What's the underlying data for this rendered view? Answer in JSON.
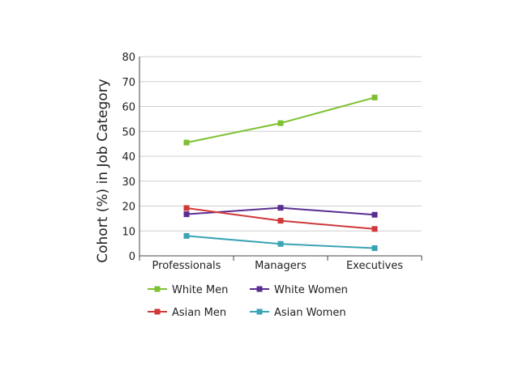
{
  "chart_data": {
    "type": "line",
    "title": "",
    "xlabel": "",
    "ylabel": "Cohort (%) in Job Category",
    "categories": [
      "Professionals",
      "Managers",
      "Executives"
    ],
    "ylim": [
      0,
      80
    ],
    "yticks": [
      0,
      10,
      20,
      30,
      40,
      50,
      60,
      70,
      80
    ],
    "grid": true,
    "legend_position": "bottom",
    "series": [
      {
        "name": "White Men",
        "color": "#7dc131",
        "values": [
          45.5,
          53.3,
          63.6
        ]
      },
      {
        "name": "White Women",
        "color": "#5a2d91",
        "values": [
          16.7,
          19.3,
          16.5
        ]
      },
      {
        "name": "Asian Men",
        "color": "#d0383a",
        "values": [
          19.2,
          14.1,
          10.8
        ]
      },
      {
        "name": "Asian Women",
        "color": "#3aa3b5",
        "values": [
          8.0,
          4.8,
          3.1
        ]
      }
    ]
  }
}
